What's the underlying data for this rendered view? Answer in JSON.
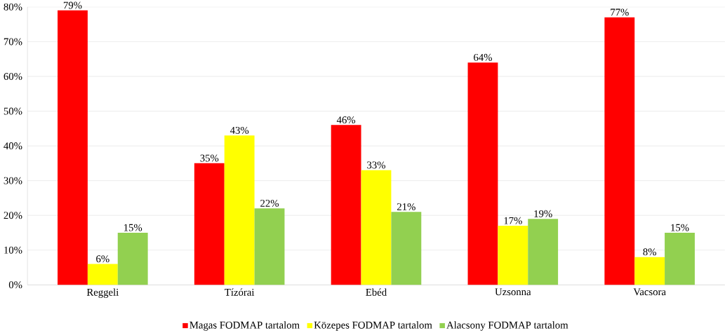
{
  "chart_data": {
    "type": "bar",
    "categories": [
      "Reggeli",
      "Tízórai",
      "Ebéd",
      "Uzsonna",
      "Vacsora"
    ],
    "series": [
      {
        "name": "Magas FODMAP tartalom",
        "color": "#ff0000",
        "values": [
          79,
          35,
          46,
          64,
          77
        ],
        "value_labels": [
          "79%",
          "35%",
          "46%",
          "64%",
          "77%"
        ]
      },
      {
        "name": "Közepes FODMAP tartalom",
        "color": "#ffff00",
        "values": [
          6,
          43,
          33,
          17,
          8
        ],
        "value_labels": [
          "6%",
          "43%",
          "33%",
          "17%",
          "8%"
        ]
      },
      {
        "name": "Alacsony FODMAP tartalom",
        "color": "#92d050",
        "values": [
          15,
          22,
          21,
          19,
          15
        ],
        "value_labels": [
          "15%",
          "22%",
          "21%",
          "19%",
          "15%"
        ]
      }
    ],
    "ylim": [
      0,
      80
    ],
    "yticks": [
      {
        "value": 0,
        "label": "0%"
      },
      {
        "value": 10,
        "label": "10%"
      },
      {
        "value": 20,
        "label": "20%"
      },
      {
        "value": 30,
        "label": "30%"
      },
      {
        "value": 40,
        "label": "40%"
      },
      {
        "value": 50,
        "label": "50%"
      },
      {
        "value": 60,
        "label": "60%"
      },
      {
        "value": 70,
        "label": "70%"
      },
      {
        "value": 80,
        "label": "80%"
      }
    ],
    "grid": "y",
    "legend": "bottom"
  }
}
